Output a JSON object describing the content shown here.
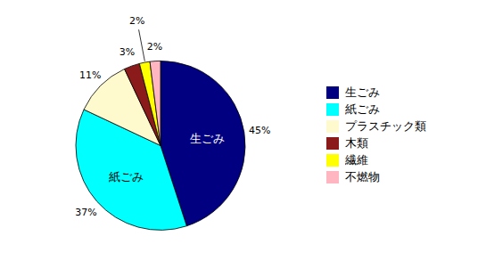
{
  "chart_data": {
    "type": "pie",
    "categories": [
      "生ごみ",
      "紙ごみ",
      "プラスチック類",
      "木類",
      "繊維",
      "不燃物"
    ],
    "values": [
      45,
      37,
      11,
      3,
      2,
      2
    ],
    "value_labels": [
      "45%",
      "37%",
      "11%",
      "3%",
      "2%",
      "2%"
    ],
    "colors": [
      "#000080",
      "#00FFFF",
      "#FFFACD",
      "#8B1A1A",
      "#FFFF00",
      "#FFB6C1"
    ],
    "data_labels": true,
    "legend": "right"
  }
}
